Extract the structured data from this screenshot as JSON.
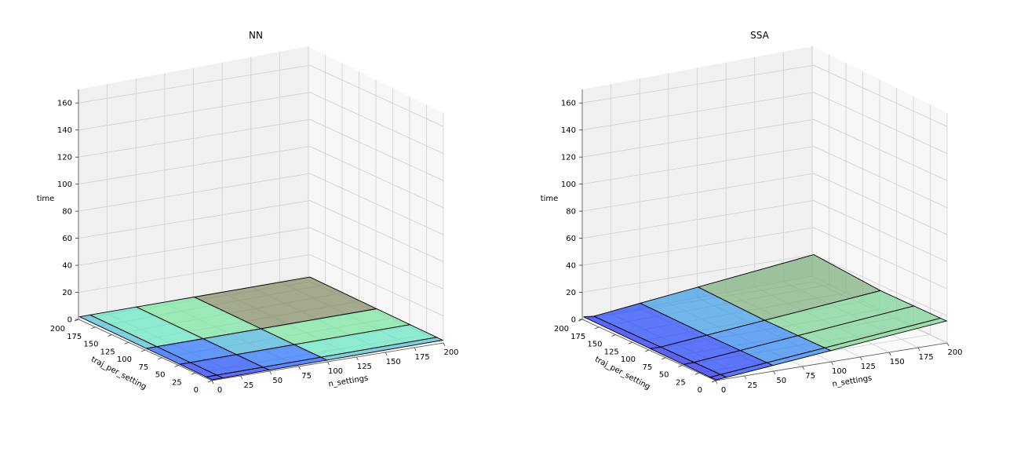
{
  "chart_data": [
    {
      "type": "surface3d",
      "title": "NN",
      "xlabel": "n_settings",
      "ylabel": "traj_per_setting",
      "zlabel": "time",
      "xlim": [
        0,
        200
      ],
      "ylim": [
        0,
        200
      ],
      "zlim": [
        0,
        170
      ],
      "xticks": [
        "0",
        "25",
        "50",
        "75",
        "100",
        "125",
        "150",
        "175",
        "200"
      ],
      "yticks": [
        "0",
        "25",
        "50",
        "75",
        "100",
        "125",
        "150",
        "175",
        "200"
      ],
      "zticks": [
        "0",
        "20",
        "40",
        "60",
        "80",
        "100",
        "120",
        "140",
        "160"
      ],
      "n_settings": [
        1,
        10,
        50,
        100,
        200
      ],
      "traj_per_setting": [
        1,
        10,
        50,
        100,
        200
      ],
      "time": [
        [
          0.2,
          0.3,
          0.6,
          1.0,
          1.8
        ],
        [
          0.3,
          0.4,
          0.7,
          1.1,
          1.9
        ],
        [
          0.6,
          0.7,
          1.0,
          1.4,
          2.2
        ],
        [
          1.0,
          1.1,
          1.4,
          1.8,
          2.6
        ],
        [
          1.8,
          1.9,
          2.2,
          2.6,
          3.4
        ]
      ],
      "grid": true
    },
    {
      "type": "surface3d",
      "title": "SSA",
      "xlabel": "n_settings",
      "ylabel": "traj_per_setting",
      "zlabel": "time",
      "xlim": [
        0,
        200
      ],
      "ylim": [
        0,
        200
      ],
      "zlim": [
        0,
        170
      ],
      "xticks": [
        "0",
        "25",
        "50",
        "75",
        "100",
        "125",
        "150",
        "175",
        "200"
      ],
      "yticks": [
        "0",
        "25",
        "50",
        "75",
        "100",
        "125",
        "150",
        "175",
        "200"
      ],
      "zticks": [
        "0",
        "20",
        "40",
        "60",
        "80",
        "100",
        "120",
        "140",
        "160"
      ],
      "n_settings": [
        1,
        10,
        50,
        100,
        200
      ],
      "traj_per_setting": [
        1,
        10,
        50,
        100,
        200
      ],
      "time": [
        [
          0.1,
          0.1,
          0.5,
          0.9,
          1.8
        ],
        [
          0.8,
          0.8,
          0.8,
          0.8,
          0.9
        ],
        [
          4,
          4,
          4,
          4,
          5
        ],
        [
          8,
          8,
          8,
          8,
          10
        ],
        [
          16,
          16,
          16,
          16,
          20
        ]
      ],
      "time_note_source": "",
      "grid": true
    }
  ]
}
